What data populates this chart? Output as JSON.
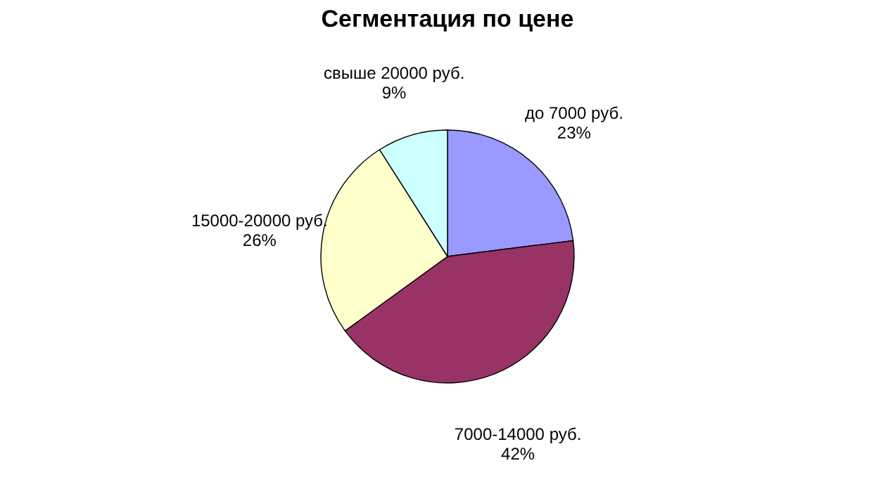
{
  "chart_data": {
    "type": "pie",
    "title": "Сегментация по цене",
    "categories": [
      "до 7000 руб.",
      "7000-14000 руб.",
      "15000-20000 руб.",
      "свыше 20000 руб."
    ],
    "values": [
      23,
      42,
      26,
      9
    ],
    "value_labels": [
      "23%",
      "42%",
      "26%",
      "9%"
    ],
    "colors": [
      "#9999ff",
      "#993366",
      "#ffffcc",
      "#ccffff"
    ],
    "legend": false
  }
}
